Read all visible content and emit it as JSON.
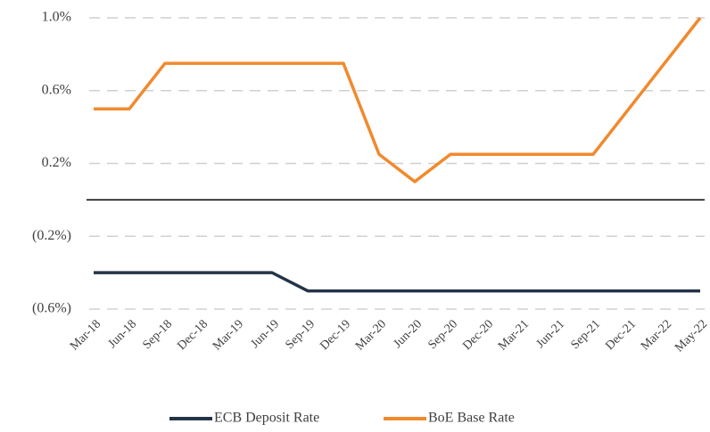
{
  "chart_data": {
    "type": "line",
    "categories": [
      "Mar-18",
      "Jun-18",
      "Sep-18",
      "Dec-18",
      "Mar-19",
      "Jun-19",
      "Sep-19",
      "Dec-19",
      "Mar-20",
      "Jun-20",
      "Sep-20",
      "Dec-20",
      "Mar-21",
      "Jun-21",
      "Sep-21",
      "Dec-21",
      "Mar-22",
      "May-22"
    ],
    "series": [
      {
        "name": "ECB Deposit Rate",
        "color": "#243447",
        "values": [
          -0.4,
          -0.4,
          -0.4,
          -0.4,
          -0.4,
          -0.4,
          -0.5,
          -0.5,
          -0.5,
          -0.5,
          -0.5,
          -0.5,
          -0.5,
          -0.5,
          -0.5,
          -0.5,
          -0.5,
          -0.5
        ]
      },
      {
        "name": "BoE Base Rate",
        "color": "#f08a2e",
        "values": [
          0.5,
          0.5,
          0.75,
          0.75,
          0.75,
          0.75,
          0.75,
          0.75,
          0.25,
          0.1,
          0.25,
          0.25,
          0.25,
          0.25,
          0.25,
          0.5,
          0.75,
          1.0
        ]
      }
    ],
    "ylim": [
      -0.6,
      1.0
    ],
    "yticks": [
      {
        "value": -0.6,
        "label": "(0.6%)"
      },
      {
        "value": -0.2,
        "label": "(0.2%)"
      },
      {
        "value": 0.2,
        "label": "0.2%"
      },
      {
        "value": 0.6,
        "label": "0.6%"
      },
      {
        "value": 1.0,
        "label": "1.0%"
      }
    ],
    "grid": true,
    "legend": "bottom"
  }
}
